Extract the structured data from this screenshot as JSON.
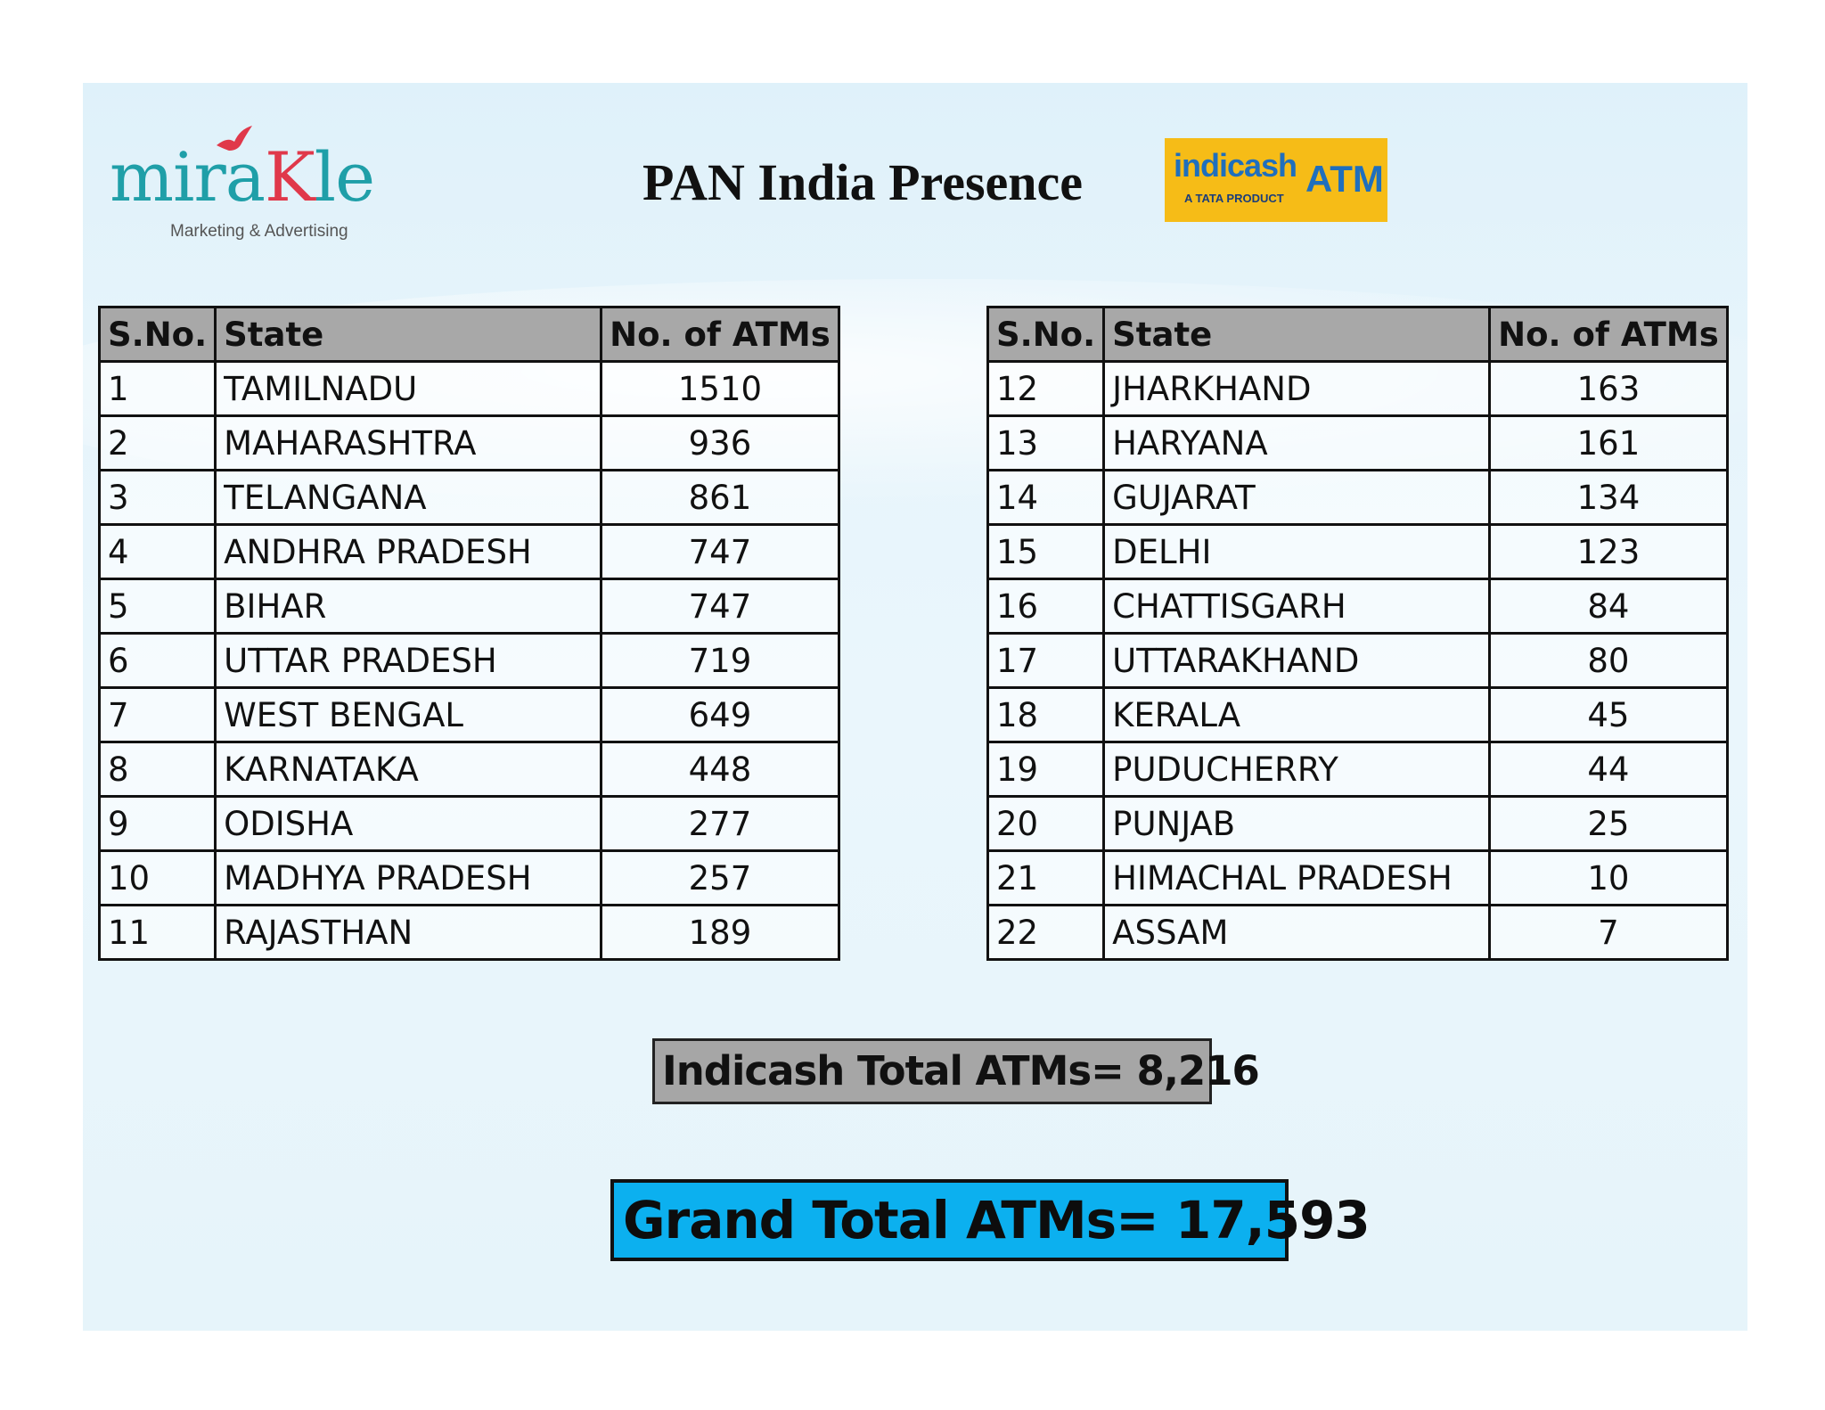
{
  "logo": {
    "word_teal_1": "mira",
    "word_red": "K",
    "word_teal_2": "le",
    "tagline": "Marketing & Advertising",
    "icon": "bird-icon"
  },
  "title": "PAN India Presence",
  "badge": {
    "brand": "indicash",
    "sub": "A TATA PRODUCT",
    "atm": "ATM",
    "bg_color": "#f6bc17"
  },
  "table_headers": {
    "sno": "S.No.",
    "state": "State",
    "atms": "No. of ATMs"
  },
  "table_left": [
    {
      "sno": "1",
      "state": "TAMILNADU",
      "atms": "1510"
    },
    {
      "sno": "2",
      "state": "MAHARASHTRA",
      "atms": "936"
    },
    {
      "sno": "3",
      "state": "TELANGANA",
      "atms": "861"
    },
    {
      "sno": "4",
      "state": "ANDHRA PRADESH",
      "atms": "747"
    },
    {
      "sno": "5",
      "state": "BIHAR",
      "atms": "747"
    },
    {
      "sno": "6",
      "state": "UTTAR PRADESH",
      "atms": "719"
    },
    {
      "sno": "7",
      "state": "WEST BENGAL",
      "atms": "649"
    },
    {
      "sno": "8",
      "state": "KARNATAKA",
      "atms": "448"
    },
    {
      "sno": "9",
      "state": "ODISHA",
      "atms": "277"
    },
    {
      "sno": "10",
      "state": "MADHYA PRADESH",
      "atms": "257"
    },
    {
      "sno": "11",
      "state": "RAJASTHAN",
      "atms": "189"
    }
  ],
  "table_right": [
    {
      "sno": "12",
      "state": "JHARKHAND",
      "atms": "163"
    },
    {
      "sno": "13",
      "state": "HARYANA",
      "atms": "161"
    },
    {
      "sno": "14",
      "state": "GUJARAT",
      "atms": "134"
    },
    {
      "sno": "15",
      "state": "DELHI",
      "atms": "123"
    },
    {
      "sno": "16",
      "state": "CHATTISGARH",
      "atms": "84"
    },
    {
      "sno": "17",
      "state": "UTTARAKHAND",
      "atms": "80"
    },
    {
      "sno": "18",
      "state": "KERALA",
      "atms": "45"
    },
    {
      "sno": "19",
      "state": "PUDUCHERRY",
      "atms": "44"
    },
    {
      "sno": "20",
      "state": "PUNJAB",
      "atms": "25"
    },
    {
      "sno": "21",
      "state": "HIMACHAL PRADESH",
      "atms": "10"
    },
    {
      "sno": "22",
      "state": "ASSAM",
      "atms": "7"
    }
  ],
  "indicash_total": "Indicash Total ATMs= 8,216",
  "grand_total": "Grand Total ATMs= 17,593",
  "colors": {
    "header_gray": "#a8a8a8",
    "grand_blue": "#0cb0ef",
    "total_gray": "#a6a6a6"
  }
}
